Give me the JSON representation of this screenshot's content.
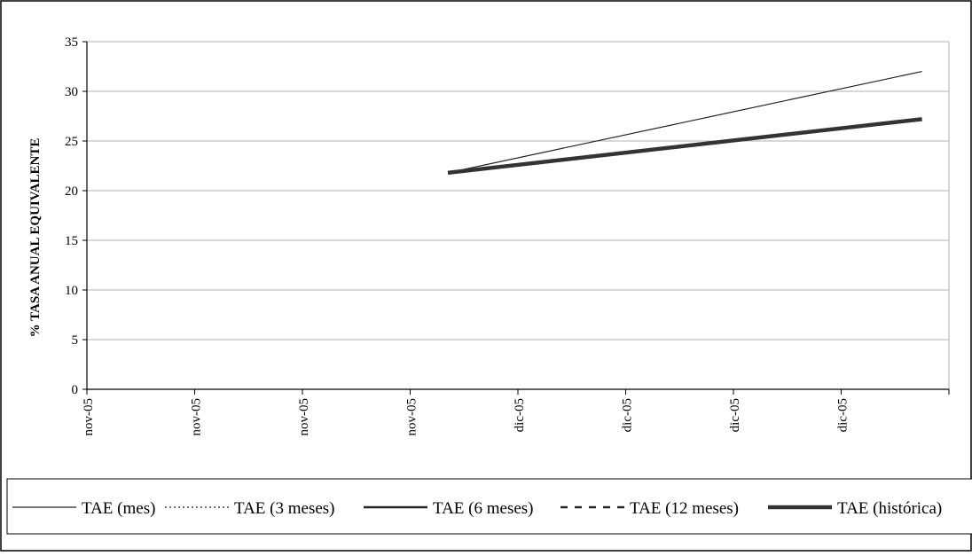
{
  "chart_data": {
    "type": "line",
    "title": "",
    "xlabel": "",
    "ylabel": "% TASA ANUAL EQUIVALENTE",
    "ylim": [
      0,
      35
    ],
    "yticks": [
      0,
      5,
      10,
      15,
      20,
      25,
      30,
      35
    ],
    "grid": true,
    "legend_position": "bottom",
    "categories": [
      "nov-05",
      "nov-05",
      "nov-05",
      "nov-05",
      "dic-05",
      "dic-05",
      "dic-05",
      "dic-05"
    ],
    "series": [
      {
        "name": "TAE (mes)",
        "style": "thin-solid",
        "color": "#222222",
        "x": [
          3.35,
          7.75
        ],
        "values": [
          21.8,
          32.0
        ]
      },
      {
        "name": "TAE (3 meses)",
        "style": "dotted",
        "color": "#222222",
        "x": [],
        "values": []
      },
      {
        "name": "TAE (6 meses)",
        "style": "medium-solid",
        "color": "#222222",
        "x": [],
        "values": []
      },
      {
        "name": "TAE (12 meses)",
        "style": "dashed",
        "color": "#222222",
        "x": [],
        "values": []
      },
      {
        "name": "TAE (histórica)",
        "style": "thick-solid",
        "color": "#333333",
        "x": [
          3.35,
          7.75
        ],
        "values": [
          21.8,
          27.2
        ]
      }
    ]
  }
}
